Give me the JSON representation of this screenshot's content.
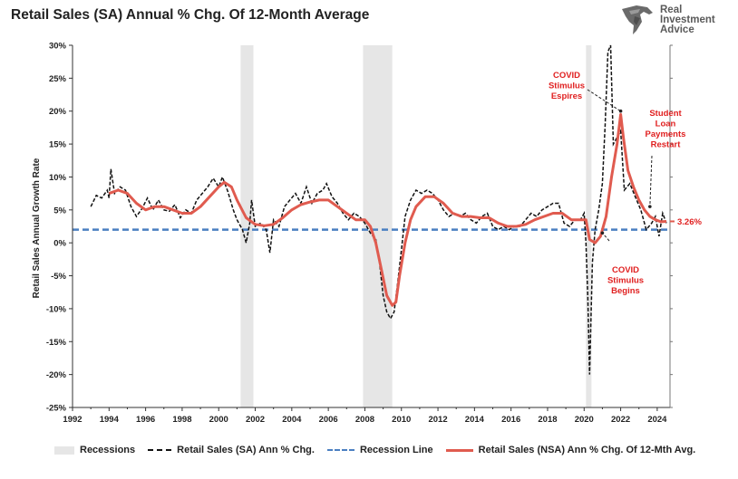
{
  "title": "Retail Sales (SA) Annual % Chg. Of 12-Month Average",
  "logo": {
    "line1": "Real",
    "line2": "Investment",
    "line3": "Advice"
  },
  "colors": {
    "recession": "#e6e6e6",
    "sa_line": "#111111",
    "recession_line": "#4a7fc1",
    "nsa_line": "#e05b4f",
    "annotation": "#e02020"
  },
  "legend": [
    {
      "label": "Recessions",
      "swatch": "rec"
    },
    {
      "label": "Retail Sales (SA) Ann % Chg.",
      "swatch": "dash"
    },
    {
      "label": "Recession Line",
      "swatch": "blue"
    },
    {
      "label": "Retail Sales (NSA) Ann % Chg. Of 12-Mth Avg.",
      "swatch": "red"
    }
  ],
  "chart_data": {
    "type": "line",
    "title": "Retail Sales (SA) Annual % Chg. Of 12-Month Average",
    "ylabel": "Retail Sales Annual Growth Rate",
    "xlabel": "",
    "xlim": [
      1992,
      2024.7
    ],
    "ylim": [
      -25,
      30
    ],
    "x_ticks": [
      "1992",
      "1994",
      "1996",
      "1998",
      "2000",
      "2002",
      "2004",
      "2006",
      "2008",
      "2010",
      "2012",
      "2014",
      "2016",
      "2018",
      "2020",
      "2022",
      "2024"
    ],
    "y_ticks": [
      "30%",
      "25%",
      "20%",
      "15%",
      "10%",
      "5%",
      "0%",
      "-5%",
      "-10%",
      "-15%",
      "-20%",
      "-25%"
    ],
    "grid": false,
    "legend_position": "bottom",
    "recessions": [
      [
        2001.2,
        2001.9
      ],
      [
        2007.9,
        2009.5
      ],
      [
        2020.1,
        2020.4
      ]
    ],
    "recession_line": 2,
    "series": [
      {
        "name": "Retail Sales (SA) Ann % Chg.",
        "style": "dashed",
        "points": [
          [
            1993.0,
            5.5
          ],
          [
            1993.3,
            7.2
          ],
          [
            1993.6,
            6.8
          ],
          [
            1993.9,
            8.0
          ],
          [
            1994.0,
            6.8
          ],
          [
            1994.1,
            11.2
          ],
          [
            1994.3,
            7.5
          ],
          [
            1994.6,
            8.5
          ],
          [
            1994.9,
            8.0
          ],
          [
            1995.2,
            5.5
          ],
          [
            1995.5,
            4.0
          ],
          [
            1995.8,
            5.2
          ],
          [
            1996.1,
            6.8
          ],
          [
            1996.4,
            5.0
          ],
          [
            1996.7,
            6.5
          ],
          [
            1997.0,
            5.0
          ],
          [
            1997.3,
            4.8
          ],
          [
            1997.6,
            5.8
          ],
          [
            1997.9,
            3.8
          ],
          [
            1998.2,
            5.0
          ],
          [
            1998.5,
            4.5
          ],
          [
            1998.8,
            6.5
          ],
          [
            1999.1,
            7.5
          ],
          [
            1999.4,
            8.5
          ],
          [
            1999.7,
            9.8
          ],
          [
            2000.0,
            8.5
          ],
          [
            2000.2,
            10.0
          ],
          [
            2000.5,
            7.8
          ],
          [
            2000.8,
            5.0
          ],
          [
            2001.0,
            3.5
          ],
          [
            2001.3,
            2.0
          ],
          [
            2001.5,
            0.0
          ],
          [
            2001.7,
            3.0
          ],
          [
            2001.8,
            6.5
          ],
          [
            2002.0,
            2.5
          ],
          [
            2002.3,
            3.0
          ],
          [
            2002.6,
            2.0
          ],
          [
            2002.8,
            -1.5
          ],
          [
            2003.0,
            3.5
          ],
          [
            2003.3,
            2.5
          ],
          [
            2003.6,
            5.5
          ],
          [
            2003.9,
            6.5
          ],
          [
            2004.2,
            7.5
          ],
          [
            2004.5,
            6.0
          ],
          [
            2004.8,
            8.5
          ],
          [
            2005.1,
            6.0
          ],
          [
            2005.4,
            7.5
          ],
          [
            2005.7,
            8.0
          ],
          [
            2005.9,
            9.0
          ],
          [
            2006.2,
            7.0
          ],
          [
            2006.5,
            6.0
          ],
          [
            2006.8,
            4.5
          ],
          [
            2007.1,
            3.5
          ],
          [
            2007.4,
            4.5
          ],
          [
            2007.7,
            4.0
          ],
          [
            2008.0,
            3.0
          ],
          [
            2008.3,
            1.5
          ],
          [
            2008.6,
            0.5
          ],
          [
            2008.8,
            -3.0
          ],
          [
            2009.0,
            -8.0
          ],
          [
            2009.2,
            -10.5
          ],
          [
            2009.4,
            -11.5
          ],
          [
            2009.6,
            -10.5
          ],
          [
            2009.8,
            -6.0
          ],
          [
            2010.0,
            -1.0
          ],
          [
            2010.2,
            4.0
          ],
          [
            2010.5,
            6.5
          ],
          [
            2010.8,
            8.0
          ],
          [
            2011.1,
            7.5
          ],
          [
            2011.4,
            8.0
          ],
          [
            2011.7,
            7.5
          ],
          [
            2012.0,
            6.5
          ],
          [
            2012.3,
            5.0
          ],
          [
            2012.6,
            4.0
          ],
          [
            2012.9,
            4.5
          ],
          [
            2013.2,
            4.0
          ],
          [
            2013.5,
            4.5
          ],
          [
            2013.8,
            3.5
          ],
          [
            2014.1,
            3.0
          ],
          [
            2014.4,
            4.0
          ],
          [
            2014.7,
            4.5
          ],
          [
            2015.0,
            2.5
          ],
          [
            2015.3,
            2.0
          ],
          [
            2015.6,
            2.5
          ],
          [
            2015.9,
            2.0
          ],
          [
            2016.2,
            2.5
          ],
          [
            2016.5,
            2.5
          ],
          [
            2016.8,
            3.5
          ],
          [
            2017.1,
            4.5
          ],
          [
            2017.4,
            4.0
          ],
          [
            2017.7,
            5.0
          ],
          [
            2018.0,
            5.5
          ],
          [
            2018.3,
            6.0
          ],
          [
            2018.6,
            6.0
          ],
          [
            2018.9,
            3.0
          ],
          [
            2019.2,
            2.5
          ],
          [
            2019.5,
            3.5
          ],
          [
            2019.8,
            3.5
          ],
          [
            2020.0,
            4.5
          ],
          [
            2020.1,
            0.0
          ],
          [
            2020.2,
            -8.0
          ],
          [
            2020.3,
            -20.0
          ],
          [
            2020.45,
            -3.0
          ],
          [
            2020.6,
            2.0
          ],
          [
            2020.8,
            5.0
          ],
          [
            2021.0,
            9.0
          ],
          [
            2021.15,
            18.0
          ],
          [
            2021.3,
            29.0
          ],
          [
            2021.45,
            32.0
          ],
          [
            2021.6,
            15.0
          ],
          [
            2021.8,
            16.0
          ],
          [
            2022.0,
            17.0
          ],
          [
            2022.2,
            8.0
          ],
          [
            2022.5,
            9.0
          ],
          [
            2022.8,
            7.0
          ],
          [
            2023.1,
            5.0
          ],
          [
            2023.4,
            2.0
          ],
          [
            2023.7,
            3.0
          ],
          [
            2023.9,
            4.0
          ],
          [
            2024.1,
            1.0
          ],
          [
            2024.3,
            4.5
          ],
          [
            2024.5,
            3.0
          ]
        ]
      },
      {
        "name": "Retail Sales (NSA) Ann % Chg. Of 12-Mth Avg.",
        "style": "solid",
        "points": [
          [
            1994.0,
            7.5
          ],
          [
            1994.5,
            8.0
          ],
          [
            1995.0,
            7.5
          ],
          [
            1995.5,
            6.0
          ],
          [
            1996.0,
            5.0
          ],
          [
            1996.5,
            5.5
          ],
          [
            1997.0,
            5.5
          ],
          [
            1997.5,
            5.0
          ],
          [
            1998.0,
            4.5
          ],
          [
            1998.5,
            4.5
          ],
          [
            1999.0,
            5.5
          ],
          [
            1999.5,
            7.0
          ],
          [
            2000.0,
            8.5
          ],
          [
            2000.3,
            9.2
          ],
          [
            2000.7,
            8.5
          ],
          [
            2001.0,
            6.5
          ],
          [
            2001.5,
            3.8
          ],
          [
            2002.0,
            2.8
          ],
          [
            2002.5,
            2.6
          ],
          [
            2003.0,
            2.8
          ],
          [
            2003.5,
            3.8
          ],
          [
            2004.0,
            5.0
          ],
          [
            2004.5,
            5.8
          ],
          [
            2005.0,
            6.2
          ],
          [
            2005.5,
            6.5
          ],
          [
            2006.0,
            6.5
          ],
          [
            2006.5,
            5.5
          ],
          [
            2007.0,
            4.5
          ],
          [
            2007.5,
            3.5
          ],
          [
            2008.0,
            3.5
          ],
          [
            2008.3,
            2.5
          ],
          [
            2008.6,
            0.0
          ],
          [
            2008.9,
            -4.0
          ],
          [
            2009.2,
            -8.0
          ],
          [
            2009.5,
            -9.5
          ],
          [
            2009.7,
            -9.0
          ],
          [
            2009.9,
            -5.0
          ],
          [
            2010.2,
            0.0
          ],
          [
            2010.5,
            3.5
          ],
          [
            2010.8,
            5.5
          ],
          [
            2011.3,
            7.0
          ],
          [
            2011.8,
            7.0
          ],
          [
            2012.3,
            6.0
          ],
          [
            2012.8,
            4.5
          ],
          [
            2013.3,
            4.0
          ],
          [
            2013.8,
            4.0
          ],
          [
            2014.3,
            3.8
          ],
          [
            2014.8,
            3.8
          ],
          [
            2015.3,
            3.0
          ],
          [
            2015.8,
            2.5
          ],
          [
            2016.3,
            2.5
          ],
          [
            2016.8,
            2.8
          ],
          [
            2017.3,
            3.5
          ],
          [
            2017.8,
            4.0
          ],
          [
            2018.3,
            4.5
          ],
          [
            2018.8,
            4.5
          ],
          [
            2019.3,
            3.5
          ],
          [
            2019.8,
            3.5
          ],
          [
            2020.1,
            3.5
          ],
          [
            2020.3,
            0.5
          ],
          [
            2020.6,
            0.0
          ],
          [
            2020.9,
            1.0
          ],
          [
            2021.2,
            4.0
          ],
          [
            2021.5,
            10.0
          ],
          [
            2021.8,
            15.0
          ],
          [
            2022.0,
            19.5
          ],
          [
            2022.15,
            16.0
          ],
          [
            2022.4,
            11.0
          ],
          [
            2022.7,
            8.5
          ],
          [
            2023.0,
            6.5
          ],
          [
            2023.3,
            5.0
          ],
          [
            2023.6,
            4.0
          ],
          [
            2023.9,
            3.5
          ],
          [
            2024.2,
            3.2
          ],
          [
            2024.5,
            3.26
          ]
        ]
      }
    ],
    "annotations": [
      {
        "text": [
          "COVID",
          "Stimulus",
          "Espires"
        ],
        "point": [
          2022.0,
          20.0
        ]
      },
      {
        "text": [
          "Student",
          "Loan",
          "Payments",
          "Restart"
        ],
        "point": [
          2023.6,
          5.5
        ]
      },
      {
        "text": [
          "COVID",
          "Stimulus",
          "Begins"
        ],
        "point": [
          2021.0,
          1.5
        ]
      }
    ],
    "last_value_label": "3.26%"
  }
}
